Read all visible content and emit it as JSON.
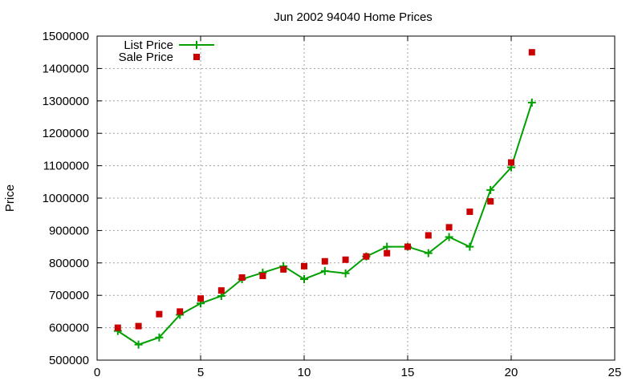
{
  "chart_data": {
    "type": "line",
    "title": "Jun 2002 94040 Home Prices",
    "xlabel": "",
    "ylabel": "Price",
    "xlim": [
      0,
      25
    ],
    "ylim": [
      500000,
      1500000
    ],
    "xticks": [
      "0",
      "5",
      "10",
      "15",
      "20",
      "25"
    ],
    "yticks": [
      "500000",
      "600000",
      "700000",
      "800000",
      "900000",
      "1000000",
      "1100000",
      "1200000",
      "1300000",
      "1400000",
      "1500000"
    ],
    "grid": true,
    "legend_position": "top-left",
    "series": [
      {
        "name": "List Price",
        "style": "line-with-plus-markers",
        "color": "#00a000",
        "x": [
          1,
          2,
          3,
          4,
          5,
          6,
          7,
          8,
          9,
          10,
          11,
          12,
          13,
          14,
          15,
          16,
          17,
          18,
          19,
          20,
          21
        ],
        "y": [
          590000,
          548000,
          570000,
          640000,
          675000,
          698000,
          750000,
          770000,
          790000,
          750000,
          775000,
          768000,
          820000,
          850000,
          850000,
          830000,
          880000,
          850000,
          1025000,
          1095000,
          1295000
        ]
      },
      {
        "name": "Sale Price",
        "style": "square-markers",
        "color": "#cc0000",
        "x": [
          1,
          2,
          3,
          4,
          5,
          6,
          7,
          8,
          9,
          10,
          11,
          12,
          13,
          14,
          15,
          16,
          17,
          18,
          19,
          20,
          21
        ],
        "y": [
          600000,
          605000,
          642000,
          650000,
          690000,
          715000,
          755000,
          760000,
          780000,
          790000,
          805000,
          810000,
          820000,
          830000,
          850000,
          885000,
          910000,
          958000,
          990000,
          1110000,
          1450000
        ]
      }
    ]
  }
}
